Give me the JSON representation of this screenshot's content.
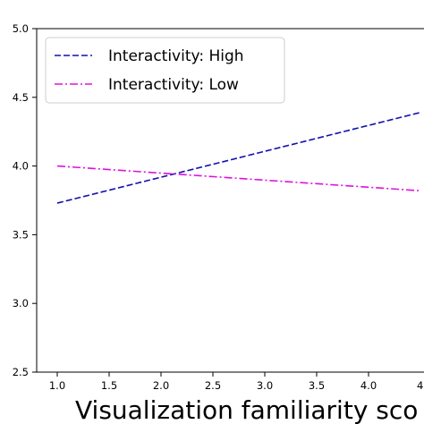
{
  "chart_data": {
    "type": "line",
    "xlabel": "Visualization familiarity sco",
    "ylabel": "",
    "xlim": [
      0.8,
      4.5
    ],
    "ylim": [
      2.5,
      5.0
    ],
    "x_ticks": [
      1.0,
      1.5,
      2.0,
      2.5,
      3.0,
      3.5,
      4.0
    ],
    "x_tick_labels": [
      "1.0",
      "1.5",
      "2.0",
      "2.5",
      "3.0",
      "3.5",
      "4.0"
    ],
    "extra_x_tick_label": "4",
    "y_ticks": [
      2.5,
      3.0,
      3.5,
      4.0,
      4.5,
      5.0
    ],
    "y_tick_labels": [
      "2.5",
      "3.0",
      "3.5",
      "4.0",
      "4.5",
      "5.0"
    ],
    "grid": false,
    "legend_position": "top-left",
    "series": [
      {
        "name": "Interactivity: High",
        "color": "#1010b0",
        "linestyle": "dashed",
        "x": [
          1.0,
          4.5
        ],
        "y": [
          3.73,
          4.39
        ]
      },
      {
        "name": "Interactivity: Low",
        "color": "#e010e0",
        "linestyle": "dashdot",
        "x": [
          1.0,
          4.5
        ],
        "y": [
          4.0,
          3.82
        ]
      }
    ]
  }
}
